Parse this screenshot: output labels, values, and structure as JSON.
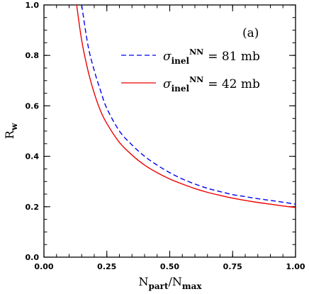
{
  "chart_data": {
    "type": "line",
    "panel_label": "(a)",
    "xlabel": {
      "base": "N",
      "sub": "part",
      "sep": "/",
      "base2": "N",
      "sub2": "max"
    },
    "ylabel": {
      "base": "R",
      "sub": "w"
    },
    "xlim": [
      0.0,
      1.0
    ],
    "ylim": [
      0.0,
      1.0
    ],
    "x_ticks": [
      0.0,
      0.25,
      0.5,
      0.75,
      1.0
    ],
    "x_tick_labels": [
      "0.00",
      "0.25",
      "0.50",
      "0.75",
      "1.00"
    ],
    "y_ticks": [
      0.0,
      0.2,
      0.4,
      0.6,
      0.8,
      1.0
    ],
    "y_tick_labels": [
      "0.0",
      "0.2",
      "0.4",
      "0.6",
      "0.8",
      "1.0"
    ],
    "grid": false,
    "legend_position": "top-right",
    "series": [
      {
        "name": "81 mb",
        "legend_symbol": "σ",
        "legend_sub": "inel",
        "legend_sup": "NN",
        "legend_value": "= 81 mb",
        "color": "#0000ee",
        "dash": true,
        "x": [
          0.15,
          0.175,
          0.2,
          0.225,
          0.25,
          0.3,
          0.35,
          0.4,
          0.45,
          0.5,
          0.55,
          0.6,
          0.65,
          0.7,
          0.75,
          0.8,
          0.85,
          0.9,
          0.95,
          1.0
        ],
        "y": [
          1.0,
          0.84,
          0.74,
          0.66,
          0.59,
          0.5,
          0.445,
          0.4,
          0.365,
          0.335,
          0.31,
          0.29,
          0.273,
          0.26,
          0.248,
          0.24,
          0.232,
          0.225,
          0.218,
          0.21
        ]
      },
      {
        "name": "42 mb",
        "legend_symbol": "σ",
        "legend_sub": "inel",
        "legend_sup": "NN",
        "legend_value": "= 42 mb",
        "color": "#ee0000",
        "dash": false,
        "x": [
          0.13,
          0.15,
          0.175,
          0.2,
          0.225,
          0.25,
          0.3,
          0.35,
          0.4,
          0.45,
          0.5,
          0.55,
          0.6,
          0.65,
          0.7,
          0.75,
          0.8,
          0.85,
          0.9,
          0.95,
          1.0
        ],
        "y": [
          1.0,
          0.86,
          0.74,
          0.65,
          0.58,
          0.53,
          0.455,
          0.405,
          0.365,
          0.335,
          0.31,
          0.29,
          0.272,
          0.257,
          0.245,
          0.234,
          0.225,
          0.217,
          0.21,
          0.203,
          0.197
        ]
      }
    ]
  }
}
